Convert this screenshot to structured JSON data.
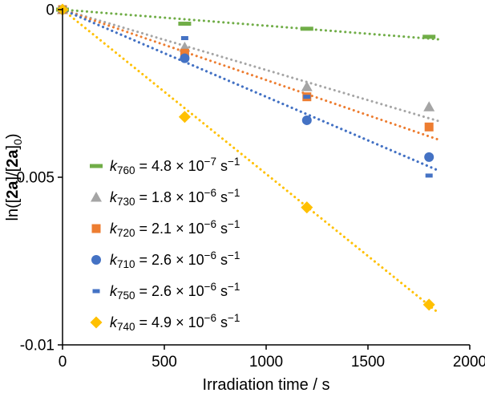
{
  "chart_data": {
    "type": "scatter",
    "title": "",
    "xlabel": "Irradiation time / s",
    "ylabel": "ln([2a]/[2a]0)",
    "ylabel_parts": [
      {
        "t": "ln(["
      },
      {
        "t": "2a",
        "style": "bold"
      },
      {
        "t": "]/["
      },
      {
        "t": "2a",
        "style": "bold"
      },
      {
        "t": "]"
      },
      {
        "t": "0",
        "style": "sub"
      },
      {
        "t": ")"
      }
    ],
    "xlim": [
      0,
      2000
    ],
    "ylim": [
      -0.01,
      0
    ],
    "xticks": [
      0,
      500,
      1000,
      1500,
      2000
    ],
    "xtick_labels": [
      "0",
      "500",
      "1000",
      "1500",
      "2000"
    ],
    "yticks": [
      0,
      -0.005,
      -0.01
    ],
    "ytick_labels": [
      "0",
      "-0.005",
      "-0.01"
    ],
    "grid": false,
    "axis_color": "#000000",
    "background": "#ffffff",
    "series": [
      {
        "id": "k760",
        "k_sub": "760",
        "rate_constant": 4.8e-07,
        "rate_text": " = 4.8 × 10",
        "rate_exp": "−7",
        "unit_text": " s",
        "unit_exp": "−1",
        "color": "#70AD47",
        "marker": "hdash",
        "x": [
          0,
          600,
          1200,
          1800
        ],
        "y": [
          0,
          -0.00042,
          -0.00057,
          -0.00081
        ],
        "trend_slope": -4.8e-07,
        "trend_x_end": 1850
      },
      {
        "id": "k730",
        "k_sub": "730",
        "rate_constant": 1.8e-06,
        "rate_text": " = 1.8 × 10",
        "rate_exp": "−6",
        "unit_text": " s",
        "unit_exp": "−1",
        "color": "#A5A5A5",
        "marker": "triangle",
        "x": [
          0,
          600,
          1200,
          1800
        ],
        "y": [
          0,
          -0.00112,
          -0.0023,
          -0.0029
        ],
        "trend_slope": -1.8e-06,
        "trend_x_end": 1850
      },
      {
        "id": "k720",
        "k_sub": "720",
        "rate_constant": 2.1e-06,
        "rate_text": " = 2.1 × 10",
        "rate_exp": "−6",
        "unit_text": " s",
        "unit_exp": "−1",
        "color": "#ED7D31",
        "marker": "square",
        "x": [
          0,
          600,
          1200,
          1800
        ],
        "y": [
          0,
          -0.0013,
          -0.0026,
          -0.0035
        ],
        "trend_slope": -2.1e-06,
        "trend_x_end": 1850
      },
      {
        "id": "k710",
        "k_sub": "710",
        "rate_constant": 2.6e-06,
        "rate_text": " = 2.6 × 10",
        "rate_exp": "−6",
        "unit_text": " s",
        "unit_exp": "−1",
        "color": "#4472C4",
        "marker": "circle",
        "x": [
          0,
          600,
          1200,
          1800
        ],
        "y": [
          0,
          -0.00145,
          -0.0033,
          -0.0044
        ],
        "trend_slope": -2.6e-06,
        "trend_x_end": 1850
      },
      {
        "id": "k750",
        "k_sub": "750",
        "rate_constant": 2.6e-06,
        "rate_text": " = 2.6 × 10",
        "rate_exp": "−6",
        "unit_text": " s",
        "unit_exp": "−1",
        "color": "#4472C4",
        "marker": "sdash",
        "x": [
          0,
          600,
          1200,
          1800
        ],
        "y": [
          0,
          -0.00085,
          -0.0026,
          -0.00495
        ],
        "trend_slope": -2.6e-06,
        "trend_x_end": 1850
      },
      {
        "id": "k740",
        "k_sub": "740",
        "rate_constant": 4.9e-06,
        "rate_text": " = 4.9 × 10",
        "rate_exp": "−6",
        "unit_text": " s",
        "unit_exp": "−1",
        "color": "#FFC000",
        "marker": "diamond",
        "x": [
          0,
          600,
          1200,
          1800
        ],
        "y": [
          0,
          -0.0032,
          -0.0059,
          -0.0088
        ],
        "trend_slope": -4.9e-06,
        "trend_x_end": 1850
      }
    ],
    "legend": {
      "position": "inside-lower-left",
      "marker_x": 120,
      "text_x": 137,
      "y_start": 207,
      "y_step": 39,
      "order": [
        "k760",
        "k730",
        "k720",
        "k710",
        "k750",
        "k740"
      ]
    }
  }
}
